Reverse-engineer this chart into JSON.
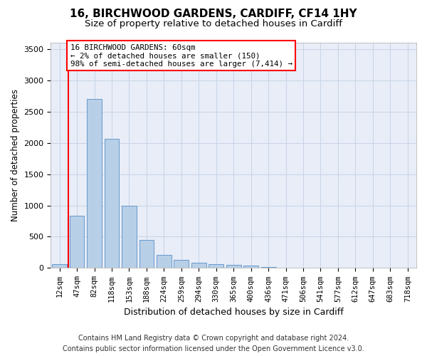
{
  "title1": "16, BIRCHWOOD GARDENS, CARDIFF, CF14 1HY",
  "title2": "Size of property relative to detached houses in Cardiff",
  "xlabel": "Distribution of detached houses by size in Cardiff",
  "ylabel": "Number of detached properties",
  "categories": [
    "12sqm",
    "47sqm",
    "82sqm",
    "118sqm",
    "153sqm",
    "188sqm",
    "224sqm",
    "259sqm",
    "294sqm",
    "330sqm",
    "365sqm",
    "400sqm",
    "436sqm",
    "471sqm",
    "506sqm",
    "541sqm",
    "577sqm",
    "612sqm",
    "647sqm",
    "683sqm",
    "718sqm"
  ],
  "values": [
    60,
    830,
    2700,
    2060,
    1000,
    450,
    205,
    135,
    82,
    65,
    50,
    35,
    22,
    10,
    5,
    3,
    1,
    1,
    0,
    0,
    0
  ],
  "bar_color": "#b8cfe8",
  "bar_edge_color": "#6699cc",
  "vline_pos": 0.5,
  "vline_color": "red",
  "annotation_text": "16 BIRCHWOOD GARDENS: 60sqm\n← 2% of detached houses are smaller (150)\n98% of semi-detached houses are larger (7,414) →",
  "ann_box_facecolor": "white",
  "ann_box_edgecolor": "red",
  "ylim": [
    0,
    3600
  ],
  "yticks": [
    0,
    500,
    1000,
    1500,
    2000,
    2500,
    3000,
    3500
  ],
  "grid_color": "#c8d4e8",
  "bg_color": "#e8edf7",
  "footer": "Contains HM Land Registry data © Crown copyright and database right 2024.\nContains public sector information licensed under the Open Government Licence v3.0."
}
